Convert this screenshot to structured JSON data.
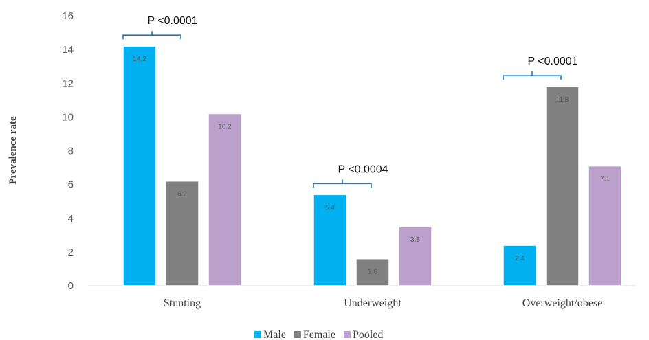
{
  "chart_data": {
    "type": "bar",
    "title": "",
    "xlabel": "",
    "ylabel": "Prevalence rate",
    "ylim": [
      0,
      16
    ],
    "yticks": [
      0,
      2,
      4,
      6,
      8,
      10,
      12,
      14,
      16
    ],
    "categories": [
      "Stunting",
      "Underweight",
      "Overweight/obese"
    ],
    "series": [
      {
        "name": "Male",
        "values": [
          14.2,
          5.4,
          2.4
        ],
        "color": "#00B0F0"
      },
      {
        "name": "Female",
        "values": [
          6.2,
          1.6,
          11.8
        ],
        "color": "#808080"
      },
      {
        "name": "Pooled",
        "values": [
          10.2,
          3.5,
          7.1
        ],
        "color": "#BCA0CC"
      }
    ],
    "annotations": [
      {
        "text": "P <0.0001",
        "category": "Stunting"
      },
      {
        "text": "P <0.0004",
        "category": "Underweight"
      },
      {
        "text": "P <0.0001",
        "category": "Overweight/obese"
      }
    ],
    "grid": false,
    "legend_position": "bottom",
    "bracket_color": "#1F77C8"
  }
}
